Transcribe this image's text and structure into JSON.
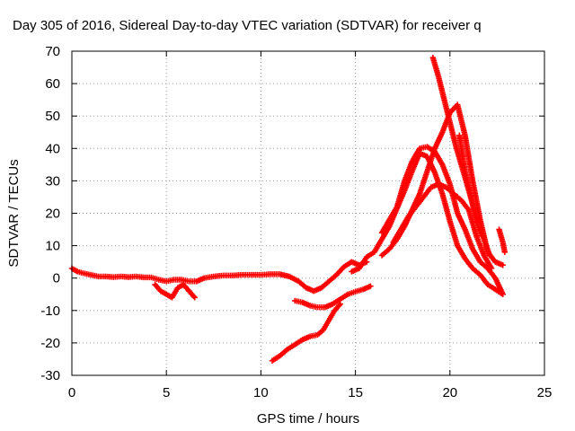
{
  "chart_data": {
    "type": "scatter",
    "title": "Day 305 of 2016, Sidereal Day-to-day VTEC variation (SDTVAR) for receiver q",
    "xlabel": "GPS time / hours",
    "ylabel": "SDTVAR / TECUs",
    "xlim": [
      0,
      25
    ],
    "ylim": [
      -30,
      70
    ],
    "xticks": [
      0,
      5,
      10,
      15,
      20,
      25
    ],
    "yticks": [
      -30,
      -20,
      -10,
      0,
      10,
      20,
      30,
      40,
      50,
      60,
      70
    ],
    "grid": true,
    "marker": "plus",
    "color": "#ff0000",
    "series": [
      {
        "x": [
          0.0,
          0.3,
          0.6,
          1.0,
          1.4,
          1.8,
          2.2,
          2.6,
          3.0,
          3.4,
          3.8,
          4.2,
          4.6,
          5.0,
          5.4,
          5.8,
          6.2,
          6.6,
          7.0,
          7.5,
          8.0,
          8.5,
          9.0,
          9.5,
          10.0,
          10.5,
          11.0,
          11.5,
          12.0,
          12.4,
          12.8,
          13.2,
          13.6,
          14.0,
          14.4,
          14.8,
          15.2,
          15.6
        ],
        "y": [
          3,
          2,
          1.5,
          1,
          0.5,
          0.5,
          0.3,
          0.5,
          0.3,
          0.5,
          0.2,
          0.2,
          -0.5,
          -1,
          -0.5,
          -0.5,
          -1,
          -1,
          0,
          0.5,
          0.8,
          0.8,
          1.0,
          1.0,
          1.0,
          1.2,
          1.2,
          0.5,
          -1,
          -3,
          -4,
          -3,
          -1,
          1,
          3.5,
          5,
          4,
          5
        ]
      },
      {
        "x": [
          4.4,
          4.7,
          5.0,
          5.3,
          5.6,
          5.9,
          6.2,
          6.5
        ],
        "y": [
          -2,
          -4,
          -5,
          -6,
          -3,
          -2,
          -4,
          -6
        ]
      },
      {
        "x": [
          11.8,
          12.2,
          12.6,
          13.0,
          13.4,
          13.8,
          14.2,
          14.6,
          15.0,
          15.4,
          15.8
        ],
        "y": [
          -7,
          -7.5,
          -8.5,
          -9,
          -9,
          -8,
          -6.5,
          -5,
          -4.2,
          -3.5,
          -2.5
        ]
      },
      {
        "x": [
          10.6,
          11.0,
          11.4,
          11.8,
          12.2,
          12.6,
          13.0,
          13.3,
          13.6,
          13.9,
          14.2
        ],
        "y": [
          -25.5,
          -24,
          -22,
          -20.5,
          -19,
          -18,
          -17.5,
          -16,
          -13,
          -10,
          -8
        ]
      },
      {
        "x": [
          14.8,
          15.2,
          15.6,
          16.0,
          16.4,
          16.8,
          17.2,
          17.6,
          18.0,
          18.4,
          18.8,
          19.2,
          19.6,
          20.0,
          20.4,
          20.8,
          21.2,
          21.6,
          22.0,
          22.4,
          22.8
        ],
        "y": [
          2.0,
          3.0,
          6.5,
          8.0,
          12.0,
          16.0,
          21.5,
          27.0,
          33.0,
          38.5,
          37.5,
          32.5,
          26.0,
          17.5,
          10.0,
          6.0,
          3.0,
          1.0,
          -2.0,
          -3.5,
          -5.0
        ]
      },
      {
        "x": [
          16.4,
          16.8,
          17.2,
          17.6,
          18.0,
          18.4,
          18.8,
          19.2,
          19.6,
          20.0,
          20.4,
          20.8,
          21.2,
          21.6,
          22.0,
          22.4,
          22.8
        ],
        "y": [
          14,
          18,
          22,
          30,
          36,
          40,
          40.5,
          39,
          35,
          29,
          20,
          15,
          9,
          5,
          3,
          0,
          -5
        ]
      },
      {
        "x": [
          16.4,
          16.8,
          17.2,
          17.6,
          18.0,
          18.4,
          18.8,
          19.2,
          19.6,
          20.0,
          20.4,
          20.8,
          21.2,
          21.6,
          22.0,
          22.4,
          22.8
        ],
        "y": [
          7,
          9,
          12,
          16,
          21,
          26,
          33,
          40,
          45,
          51,
          53.5,
          44,
          30,
          18,
          8,
          5,
          4
        ]
      },
      {
        "x": [
          17.0,
          17.4,
          17.8,
          18.2,
          18.6,
          19.0,
          19.4,
          19.8,
          20.2,
          20.6,
          21.0,
          21.4,
          21.8,
          22.2
        ],
        "y": [
          11,
          15,
          19,
          22,
          25,
          28,
          29,
          28,
          26,
          24,
          21,
          13,
          7,
          3
        ]
      },
      {
        "x": [
          19.1,
          19.4,
          19.7,
          20.0,
          20.3,
          20.6,
          20.9,
          21.2,
          21.5,
          21.8,
          22.1
        ],
        "y": [
          68,
          62,
          55,
          48,
          41,
          35,
          29,
          23,
          17,
          12,
          7
        ]
      },
      {
        "x": [
          20.5,
          20.8,
          21.1,
          21.4,
          21.7
        ],
        "y": [
          44,
          33,
          25,
          18,
          13
        ]
      },
      {
        "x": [
          22.6,
          22.7,
          22.8,
          22.9
        ],
        "y": [
          15,
          13,
          11,
          8
        ]
      }
    ]
  }
}
